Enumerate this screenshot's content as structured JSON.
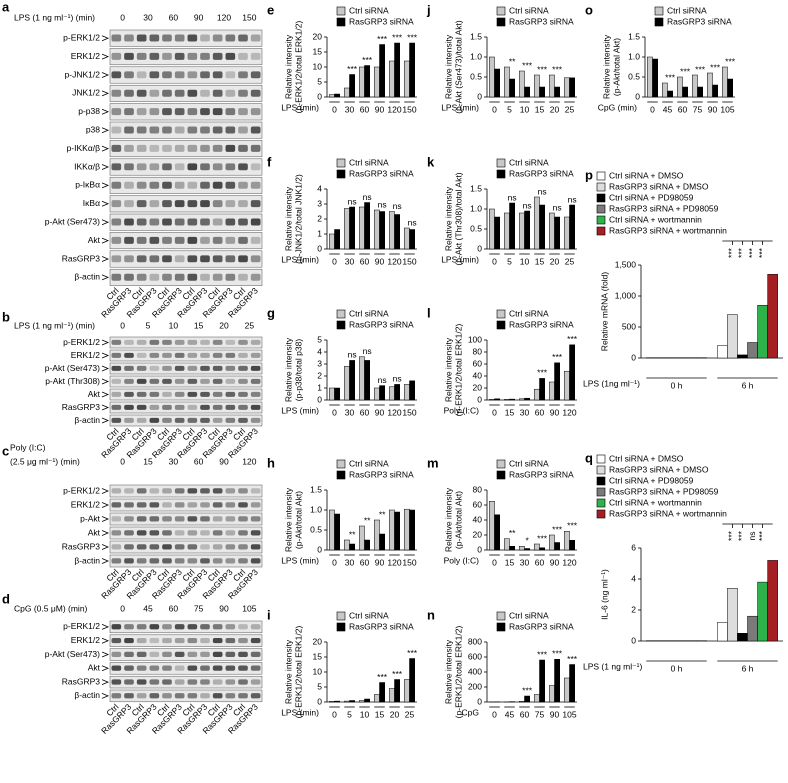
{
  "blots": [
    {
      "panel": "a",
      "treatment": [
        "LPS (1 ng ml⁻¹) (min)"
      ],
      "times": [
        0,
        30,
        60,
        90,
        120,
        150
      ],
      "rows": [
        "p-ERK1/2",
        "ERK1/2",
        "p-JNK1/2",
        "JNK1/2",
        "p-p38",
        "p38",
        "p-IKKα/β",
        "IKKα/β",
        "p-IκBα",
        "IκBα",
        "p-Akt (Ser473)",
        "Akt",
        "RasGRP3",
        "β-actin"
      ]
    },
    {
      "panel": "b",
      "treatment": [
        "LPS (1 ng ml⁻¹) (min)"
      ],
      "times": [
        0,
        5,
        10,
        15,
        20,
        25
      ],
      "rows": [
        "p-ERK1/2",
        "ERK1/2",
        "p-Akt (Ser473)",
        "p-Akt (Thr308)",
        "Akt",
        "RasGRP3",
        "β-actin"
      ]
    },
    {
      "panel": "c",
      "treatment": [
        "Poly (I:C)",
        "(2.5 μg ml⁻¹) (min)"
      ],
      "times": [
        0,
        15,
        30,
        60,
        90,
        120
      ],
      "rows": [
        "p-ERK1/2",
        "ERK1/2",
        "p-Akt",
        "Akt",
        "RasGRP3",
        "β-actin"
      ]
    },
    {
      "panel": "d",
      "treatment": [
        "CpG (0.5 μM) (min)"
      ],
      "times": [
        0,
        45,
        60,
        75,
        90,
        105
      ],
      "rows": [
        "p-ERK1/2",
        "ERK1/2",
        "p-Akt (Ser473)",
        "Akt",
        "RasGRP3",
        "β-actin"
      ]
    }
  ],
  "lanes": [
    "Ctrl",
    "RasGRP3"
  ],
  "chart_data": [
    {
      "panel": "e",
      "type": "bar",
      "ylabel": [
        "Relative intensity",
        "(p-ERK1/2/total ERK1/2)"
      ],
      "xlabel": "LPS (min)",
      "categories": [
        0,
        30,
        60,
        90,
        120,
        150
      ],
      "ylim": [
        0,
        20
      ],
      "yticks": [
        0,
        5,
        10,
        15,
        20
      ],
      "series": [
        {
          "name": "Ctrl siRNA",
          "color": "#c8c8c8",
          "values": [
            0.8,
            3,
            10,
            10,
            12,
            12
          ]
        },
        {
          "name": "RasGRP3 siRNA",
          "color": "#000000",
          "values": [
            1,
            7.5,
            10.5,
            17.5,
            18,
            18
          ]
        }
      ],
      "significance": [
        null,
        "***",
        "***",
        "***",
        "***",
        "***"
      ]
    },
    {
      "panel": "f",
      "type": "bar",
      "ylabel": [
        "Relative intensity",
        "(p-JNK1/2/total JNK1/2)"
      ],
      "xlabel": "LPS (min)",
      "categories": [
        0,
        30,
        60,
        90,
        120,
        150
      ],
      "ylim": [
        0,
        4
      ],
      "yticks": [
        0,
        1,
        2,
        3,
        4
      ],
      "series": [
        {
          "name": "Ctrl siRNA",
          "color": "#c8c8c8",
          "values": [
            1,
            2.7,
            2.8,
            2.6,
            2.5,
            1.4
          ]
        },
        {
          "name": "RasGRP3 siRNA",
          "color": "#000000",
          "values": [
            1.3,
            2.8,
            3.1,
            2.5,
            2.3,
            1.3
          ]
        }
      ],
      "significance": [
        null,
        "ns",
        "ns",
        "ns",
        "ns",
        "ns"
      ]
    },
    {
      "panel": "g",
      "type": "bar",
      "ylabel": [
        "Relative intensity",
        "(p-p38/total p38)"
      ],
      "xlabel": "LPS (min)",
      "categories": [
        0,
        30,
        60,
        90,
        120,
        150
      ],
      "ylim": [
        0,
        5
      ],
      "yticks": [
        0,
        1,
        2,
        3,
        4,
        5
      ],
      "series": [
        {
          "name": "Ctrl siRNA",
          "color": "#c8c8c8",
          "values": [
            1,
            2.8,
            3.6,
            1,
            1.1,
            1.3
          ]
        },
        {
          "name": "RasGRP3 siRNA",
          "color": "#000000",
          "values": [
            1,
            3.3,
            3.3,
            1.2,
            1.3,
            1.6
          ]
        }
      ],
      "significance": [
        null,
        "ns",
        "ns",
        "ns",
        "ns",
        null
      ]
    },
    {
      "panel": "h",
      "type": "bar",
      "ylabel": [
        "Relative intensity",
        "(p-Akt/total Akt)"
      ],
      "xlabel": "LPS (min)",
      "categories": [
        0,
        30,
        60,
        90,
        120,
        150
      ],
      "ylim": [
        0,
        1.5
      ],
      "yticks": [
        0,
        0.5,
        {
          "value": 1,
          "label": "1.0"
        },
        1.5
      ],
      "series": [
        {
          "name": "Ctrl siRNA",
          "color": "#c8c8c8",
          "values": [
            1,
            0.25,
            0.6,
            0.75,
            1,
            1.02
          ]
        },
        {
          "name": "RasGRP3 siRNA",
          "color": "#000000",
          "values": [
            0.9,
            0.15,
            0.25,
            0.4,
            0.95,
            1
          ]
        }
      ],
      "significance": [
        null,
        "**",
        "**",
        "**",
        null,
        null
      ]
    },
    {
      "panel": "i",
      "type": "bar",
      "ylabel": [
        "Relative intensity",
        "(p-ERK1/2/total ERK1/2)"
      ],
      "xlabel": "LPS (min)",
      "categories": [
        0,
        5,
        10,
        15,
        20,
        25
      ],
      "ylim": [
        0,
        20
      ],
      "yticks": [
        0,
        5,
        10,
        15,
        20
      ],
      "series": [
        {
          "name": "Ctrl siRNA",
          "color": "#c8c8c8",
          "values": [
            0.2,
            0.3,
            0.5,
            2.5,
            4.5,
            7.5
          ]
        },
        {
          "name": "RasGRP3 siRNA",
          "color": "#000000",
          "values": [
            0.3,
            0.5,
            1,
            6.5,
            7.5,
            14.5
          ]
        }
      ],
      "significance": [
        null,
        null,
        null,
        "***",
        "***",
        "***"
      ]
    },
    {
      "panel": "j",
      "type": "bar",
      "ylabel": [
        "Relative intensity",
        "(p-Akt (Ser473)/total Akt)"
      ],
      "xlabel": "LPS (min)",
      "categories": [
        0,
        5,
        10,
        15,
        20,
        25
      ],
      "ylim": [
        0,
        1.5
      ],
      "yticks": [
        0,
        0.5,
        {
          "value": 1,
          "label": "1.0"
        },
        1.5
      ],
      "series": [
        {
          "name": "Ctrl siRNA",
          "color": "#c8c8c8",
          "values": [
            1,
            0.75,
            0.65,
            0.55,
            0.55,
            0.48
          ]
        },
        {
          "name": "RasGRP3 siRNA",
          "color": "#000000",
          "values": [
            0.7,
            0.45,
            0.25,
            0.25,
            0.25,
            0.48
          ]
        }
      ],
      "significance": [
        null,
        "**",
        "***",
        "***",
        "***",
        null
      ]
    },
    {
      "panel": "k",
      "type": "bar",
      "ylabel": [
        "Relative intensity",
        "(p-Akt (Thr308)/total Akt)"
      ],
      "xlabel": "LPS (min)",
      "categories": [
        0,
        5,
        10,
        15,
        20,
        25
      ],
      "ylim": [
        0,
        1.5
      ],
      "yticks": [
        0,
        0.5,
        {
          "value": 1,
          "label": "1.0"
        },
        1.5
      ],
      "series": [
        {
          "name": "Ctrl siRNA",
          "color": "#c8c8c8",
          "values": [
            1,
            0.9,
            0.9,
            1.3,
            0.9,
            0.8
          ]
        },
        {
          "name": "RasGRP3 siRNA",
          "color": "#000000",
          "values": [
            0.8,
            1.15,
            0.95,
            1.1,
            0.8,
            1.1
          ]
        }
      ],
      "significance": [
        null,
        "ns",
        "ns",
        "ns",
        "ns",
        "ns"
      ]
    },
    {
      "panel": "l",
      "type": "bar",
      "ylabel": [
        "Relative intensity",
        "(p-ERK1/2/total ERK1/2)"
      ],
      "xlabel": "Poly (I:C)",
      "categories": [
        0,
        15,
        30,
        60,
        90,
        120
      ],
      "ylim": [
        0,
        100
      ],
      "yticks": [
        0,
        20,
        40,
        60,
        80,
        100
      ],
      "series": [
        {
          "name": "Ctrl siRNA",
          "color": "#c8c8c8",
          "values": [
            1,
            1,
            2,
            18,
            30,
            48
          ]
        },
        {
          "name": "RasGRP3 siRNA",
          "color": "#000000",
          "values": [
            2,
            1.5,
            3,
            36,
            62,
            92
          ]
        }
      ],
      "significance": [
        null,
        null,
        null,
        "***",
        "***",
        "***"
      ]
    },
    {
      "panel": "m",
      "type": "bar",
      "ylabel": [
        "Relative intensity",
        "(p-Akt/total Akt)"
      ],
      "xlabel": "Poly (I:C)",
      "categories": [
        0,
        15,
        30,
        60,
        90,
        120
      ],
      "ylim": [
        0,
        80
      ],
      "yticks": [
        0,
        20,
        40,
        60,
        80
      ],
      "series": [
        {
          "name": "Ctrl siRNA",
          "color": "#c8c8c8",
          "values": [
            65,
            15,
            5,
            8,
            20,
            25
          ]
        },
        {
          "name": "RasGRP3 siRNA",
          "color": "#000000",
          "values": [
            47,
            5,
            2,
            3,
            10,
            13
          ]
        }
      ],
      "significance": [
        null,
        "**",
        "*",
        "***",
        "***",
        "***"
      ]
    },
    {
      "panel": "n",
      "type": "bar",
      "ylabel": [
        "Relative intensity",
        "(p-ERK1/2/total ERK1/2)"
      ],
      "xlabel": "CpG",
      "categories": [
        0,
        45,
        60,
        75,
        90,
        105
      ],
      "ylim": [
        0,
        800
      ],
      "yticks": [
        0,
        200,
        400,
        600,
        800
      ],
      "series": [
        {
          "name": "Ctrl siRNA",
          "color": "#c8c8c8",
          "values": [
            1,
            1,
            10,
            100,
            220,
            320
          ]
        },
        {
          "name": "RasGRP3 siRNA",
          "color": "#000000",
          "values": [
            2,
            5,
            80,
            560,
            570,
            500
          ]
        }
      ],
      "significance": [
        null,
        null,
        "***",
        "***",
        "***",
        "***"
      ]
    },
    {
      "panel": "o",
      "type": "bar",
      "ylabel": [
        "Relative intensity",
        "(p-Akt/total Akt)"
      ],
      "xlabel": "CpG (min)",
      "categories": [
        0,
        45,
        60,
        75,
        90,
        105
      ],
      "ylim": [
        0,
        1.5
      ],
      "yticks": [
        0,
        0.5,
        {
          "value": 1,
          "label": "1.0"
        },
        1.5
      ],
      "series": [
        {
          "name": "Ctrl siRNA",
          "color": "#c8c8c8",
          "values": [
            1,
            0.35,
            0.5,
            0.55,
            0.6,
            0.75
          ]
        },
        {
          "name": "RasGRP3 siRNA",
          "color": "#000000",
          "values": [
            0.95,
            0.15,
            0.25,
            0.25,
            0.3,
            0.45
          ]
        }
      ],
      "significance": [
        null,
        "***",
        "***",
        "***",
        "***",
        "***"
      ]
    },
    {
      "panel": "p",
      "type": "bar",
      "ylabel": [
        "Relative mRNA (fold)"
      ],
      "xlabel": "LPS (1ng ml⁻¹)",
      "categories": [
        "0 h",
        "6 h"
      ],
      "ylim": [
        0,
        1500
      ],
      "yticks": [
        0,
        500,
        {
          "value": 1000,
          "label": "1,000"
        },
        {
          "value": 1500,
          "label": "1,500"
        }
      ],
      "series": [
        {
          "name": "Ctrl siRNA + DMSO",
          "color": "#ffffff",
          "values": [
            5,
            200
          ]
        },
        {
          "name": "RasGRP3 siRNA + DMSO",
          "color": "#dddddd",
          "values": [
            5,
            700
          ]
        },
        {
          "name": "Ctrl siRNA + PD98059",
          "color": "#000000",
          "values": [
            5,
            50
          ]
        },
        {
          "name": "RasGRP3 siRNA + PD98059",
          "color": "#7a7a7a",
          "values": [
            5,
            250
          ]
        },
        {
          "name": "Ctrl siRNA + wortmannin",
          "color": "#2db34a",
          "values": [
            5,
            850
          ]
        },
        {
          "name": "RasGRP3 siRNA + wortmannin",
          "color": "#a31f24",
          "values": [
            5,
            1350
          ]
        }
      ],
      "annotations": [
        "***",
        "***",
        "***",
        "***"
      ]
    },
    {
      "panel": "q",
      "type": "bar",
      "ylabel": [
        "IL-6 (ng ml⁻¹)"
      ],
      "xlabel": "LPS (1 ng ml⁻¹)",
      "categories": [
        "0 h",
        "6 h"
      ],
      "ylim": [
        0,
        6
      ],
      "yticks": [
        0,
        2,
        4,
        6
      ],
      "series": [
        {
          "name": "Ctrl siRNA + DMSO",
          "color": "#ffffff",
          "values": [
            0.02,
            1.2
          ]
        },
        {
          "name": "RasGRP3 siRNA + DMSO",
          "color": "#dddddd",
          "values": [
            0.02,
            3.4
          ]
        },
        {
          "name": "Ctrl siRNA + PD98059",
          "color": "#000000",
          "values": [
            0.02,
            0.5
          ]
        },
        {
          "name": "RasGRP3 siRNA + PD98059",
          "color": "#7a7a7a",
          "values": [
            0.02,
            1.6
          ]
        },
        {
          "name": "Ctrl siRNA + wortmannin",
          "color": "#2db34a",
          "values": [
            0.02,
            3.8
          ]
        },
        {
          "name": "RasGRP3 siRNA + wortmannin",
          "color": "#a31f24",
          "values": [
            0.02,
            5.2
          ]
        }
      ],
      "annotations": [
        "***",
        "***",
        "ns",
        "***"
      ]
    }
  ]
}
